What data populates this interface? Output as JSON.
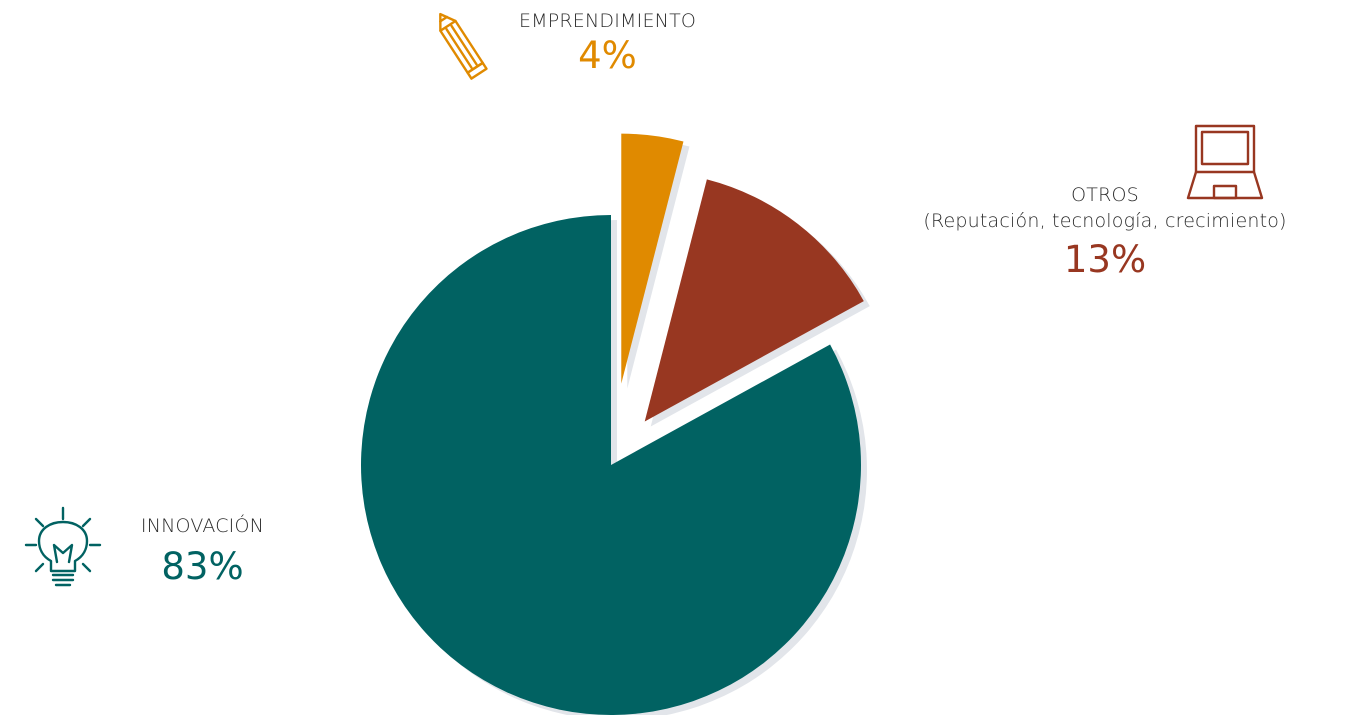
{
  "chart_data": {
    "type": "pie",
    "slices": [
      {
        "label": "INNOVACIÓN",
        "sublabel": "",
        "value": 83,
        "value_label": "83%",
        "color": "#016262",
        "icon": "lightbulb-icon",
        "exploded": false
      },
      {
        "label": "EMPRENDIMIENTO",
        "sublabel": "",
        "value": 4,
        "value_label": "4%",
        "color": "#E08A00",
        "icon": "pencil-icon",
        "exploded": true
      },
      {
        "label": "OTROS",
        "sublabel": "(Reputación, tecnología, crecimiento)",
        "value": 13,
        "value_label": "13%",
        "color": "#983721",
        "icon": "laptop-icon",
        "exploded": true
      }
    ],
    "start_angle_deg": 0,
    "direction": "clockwise",
    "shadow_color": "#E2E5EA"
  }
}
